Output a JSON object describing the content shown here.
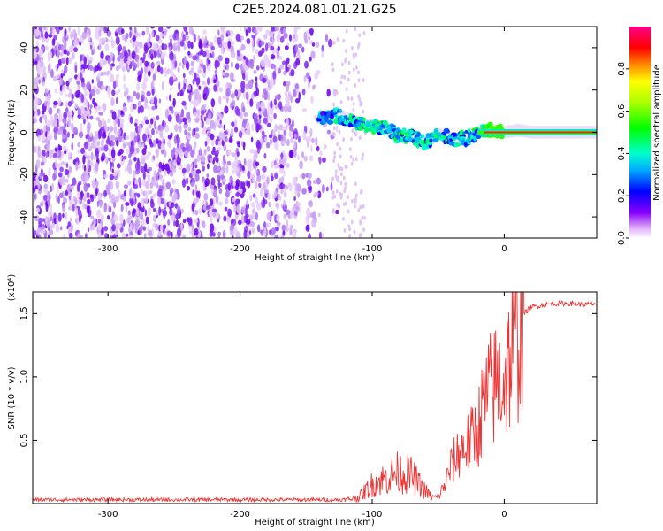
{
  "title": "C2E5.2024.081.01.21.G25",
  "chart_data": [
    {
      "type": "heatmap",
      "title": "C2E5.2024.081.01.21.G25",
      "xlabel": "Height of straight line (km)",
      "ylabel": "Frequency (Hz)",
      "xlim": [
        -357,
        70
      ],
      "ylim": [
        -50,
        50
      ],
      "x_ticks": [
        -300,
        -200,
        -100,
        0
      ],
      "y_ticks": [
        -40,
        -20,
        0,
        20,
        40
      ],
      "colorbar": {
        "label": "Normalized spectral amplitude",
        "range": [
          0,
          1
        ],
        "ticks": [
          0.0,
          0.2,
          0.4,
          0.6,
          0.8
        ],
        "colormap": "gist_rainbow_white_low"
      },
      "noise_region_x": [
        -357,
        -125
      ],
      "signal_ridge": {
        "x": [
          -140,
          -125,
          -110,
          -100,
          -90,
          -80,
          -70,
          -60,
          -50,
          -40,
          -30,
          -20,
          -10,
          0,
          10,
          20,
          40,
          70
        ],
        "freq_hz": [
          7,
          8,
          4,
          3,
          2,
          -2,
          -2,
          -5,
          -1,
          -3,
          -3,
          0,
          1,
          0,
          1,
          0,
          0,
          0
        ],
        "amplitude": [
          0.3,
          0.35,
          0.4,
          0.4,
          0.38,
          0.4,
          0.38,
          0.4,
          0.36,
          0.35,
          0.35,
          0.4,
          0.75,
          0.85,
          0.9,
          0.95,
          0.95,
          0.95
        ]
      },
      "grid": false
    },
    {
      "type": "line",
      "xlabel": "Height of straight line (km)",
      "ylabel": "SNR (10 * v/v)",
      "y_multiplier": "(x10⁴)",
      "xlim": [
        -357,
        70
      ],
      "ylim": [
        0,
        1.67
      ],
      "x_ticks": [
        -300,
        -200,
        -100,
        0
      ],
      "y_ticks": [
        0.5,
        1.0,
        1.5
      ],
      "color": "#ee3333",
      "series": [
        {
          "x": [
            -357,
            -300,
            -200,
            -120,
            -110,
            -100,
            -90,
            -80,
            -70,
            -60,
            -55,
            -50,
            -45,
            -40,
            -35,
            -30,
            -25,
            -20,
            -15,
            -10,
            -5,
            0,
            5,
            10,
            15,
            20,
            30,
            40,
            50,
            60,
            70
          ],
          "values": [
            0.03,
            0.03,
            0.03,
            0.03,
            0.05,
            0.15,
            0.2,
            0.25,
            0.22,
            0.1,
            0.05,
            0.05,
            0.15,
            0.3,
            0.4,
            0.45,
            0.5,
            0.6,
            0.8,
            0.9,
            0.95,
            1.0,
            1.15,
            1.35,
            1.5,
            1.55,
            1.57,
            1.58,
            1.58,
            1.57,
            1.58
          ]
        }
      ],
      "grid": false
    }
  ]
}
